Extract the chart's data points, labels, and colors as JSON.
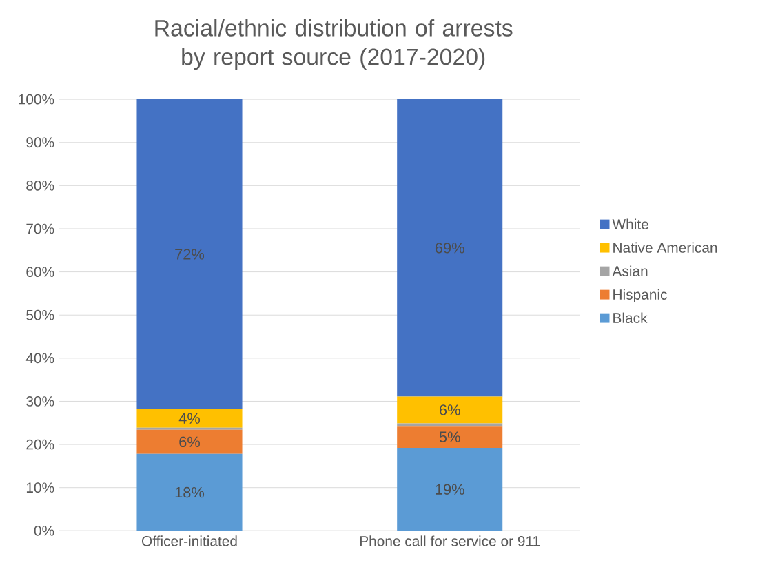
{
  "chart_data": {
    "type": "bar",
    "title": "Racial/ethnic distribution of arrests by report source (2017-2020)",
    "categories": [
      "Officer-initiated",
      "Phone call for service or 911"
    ],
    "stacked": true,
    "series": [
      {
        "name": "Black",
        "color": "#5b9bd5",
        "values": [
          17.8,
          19.2
        ],
        "value_labels": [
          "18%",
          "19%"
        ]
      },
      {
        "name": "Hispanic",
        "color": "#ed7d31",
        "values": [
          5.6,
          5.1
        ],
        "value_labels": [
          "6%",
          "5%"
        ]
      },
      {
        "name": "Asian",
        "color": "#a5a5a5",
        "values": [
          0.5,
          0.6
        ],
        "value_labels": [
          null,
          null
        ]
      },
      {
        "name": "Native American",
        "color": "#ffc000",
        "values": [
          4.3,
          6.2
        ],
        "value_labels": [
          "4%",
          "6%"
        ]
      },
      {
        "name": "White",
        "color": "#4472c4",
        "values": [
          71.8,
          68.9
        ],
        "value_labels": [
          "72%",
          "69%"
        ]
      }
    ],
    "ylim": [
      0,
      100
    ],
    "yticks": [
      {
        "value": 0,
        "label": "0%"
      },
      {
        "value": 10,
        "label": "10%"
      },
      {
        "value": 20,
        "label": "20%"
      },
      {
        "value": 30,
        "label": "30%"
      },
      {
        "value": 40,
        "label": "40%"
      },
      {
        "value": 50,
        "label": "50%"
      },
      {
        "value": 60,
        "label": "60%"
      },
      {
        "value": 70,
        "label": "70%"
      },
      {
        "value": 80,
        "label": "80%"
      },
      {
        "value": 90,
        "label": "90%"
      },
      {
        "value": 100,
        "label": "100%"
      }
    ],
    "grid": "y",
    "legend": "right"
  }
}
